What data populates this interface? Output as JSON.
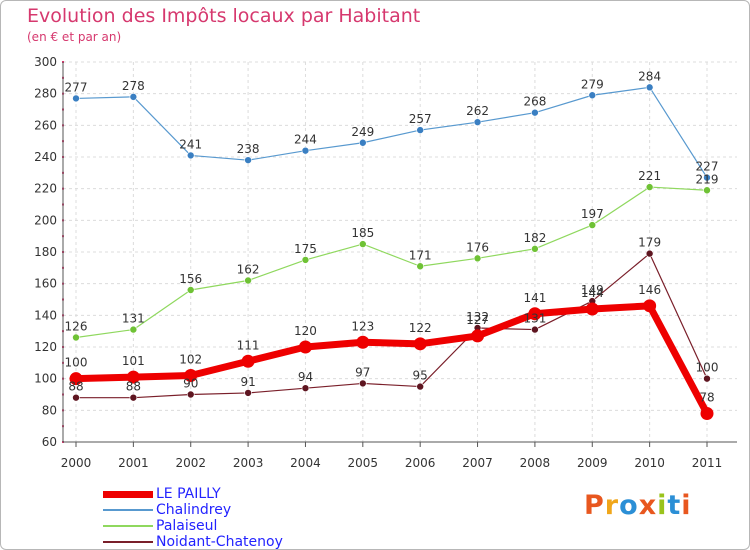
{
  "header": {
    "title": "Evolution des Impôts locaux par Habitant",
    "subtitle": "(en € et par an)"
  },
  "logo": {
    "text": "Proxiti",
    "colors": [
      "#e8571f",
      "#f0a61a",
      "#2b8fd6",
      "#e8571f",
      "#9ac31c",
      "#2b8fd6",
      "#e8571f"
    ]
  },
  "chart_data": {
    "type": "line",
    "title": "Evolution des Impôts locaux par Habitant",
    "subtitle": "(en € et par an)",
    "xlabel": "",
    "ylabel": "",
    "x": [
      "2000",
      "2001",
      "2002",
      "2003",
      "2004",
      "2005",
      "2006",
      "2007",
      "2008",
      "2009",
      "2010",
      "2011"
    ],
    "ylim": [
      60,
      300
    ],
    "yticks": [
      60,
      80,
      100,
      120,
      140,
      160,
      180,
      200,
      220,
      240,
      260,
      280,
      300
    ],
    "grid": true,
    "legend": "bottom-left",
    "series": [
      {
        "name": "LE PAILLY",
        "values": [
          100,
          101,
          102,
          111,
          120,
          123,
          122,
          127,
          141,
          144,
          146,
          78
        ],
        "color": "#ee0000",
        "labels": [
          "100",
          "101",
          "102",
          "111",
          "120",
          "123",
          "122",
          "127",
          "141",
          "144",
          "146",
          "78"
        ]
      },
      {
        "name": "Chalindrey",
        "values": [
          277,
          278,
          241,
          238,
          244,
          249,
          257,
          262,
          268,
          279,
          284,
          227
        ],
        "color": "#5899cf",
        "labels": [
          "277",
          "278",
          "241",
          "238",
          "244",
          "249",
          "257",
          "262",
          "268",
          "279",
          "284",
          "227"
        ]
      },
      {
        "name": "Palaiseul",
        "values": [
          126,
          131,
          156,
          162,
          175,
          185,
          171,
          176,
          182,
          197,
          221,
          219
        ],
        "color": "#8fd85e",
        "labels": [
          "126",
          "131",
          "156",
          "162",
          "175",
          "185",
          "171",
          "176",
          "182",
          "197",
          "221",
          "219"
        ]
      },
      {
        "name": "Noidant-Chatenoy",
        "values": [
          88,
          88,
          90,
          91,
          94,
          97,
          95,
          132,
          131,
          149,
          179,
          100
        ],
        "color": "#7a1f2a",
        "labels": [
          "88",
          "88",
          "90",
          "91",
          "94",
          "97",
          "95",
          "132",
          "131",
          "149",
          "179",
          "100"
        ]
      }
    ]
  }
}
